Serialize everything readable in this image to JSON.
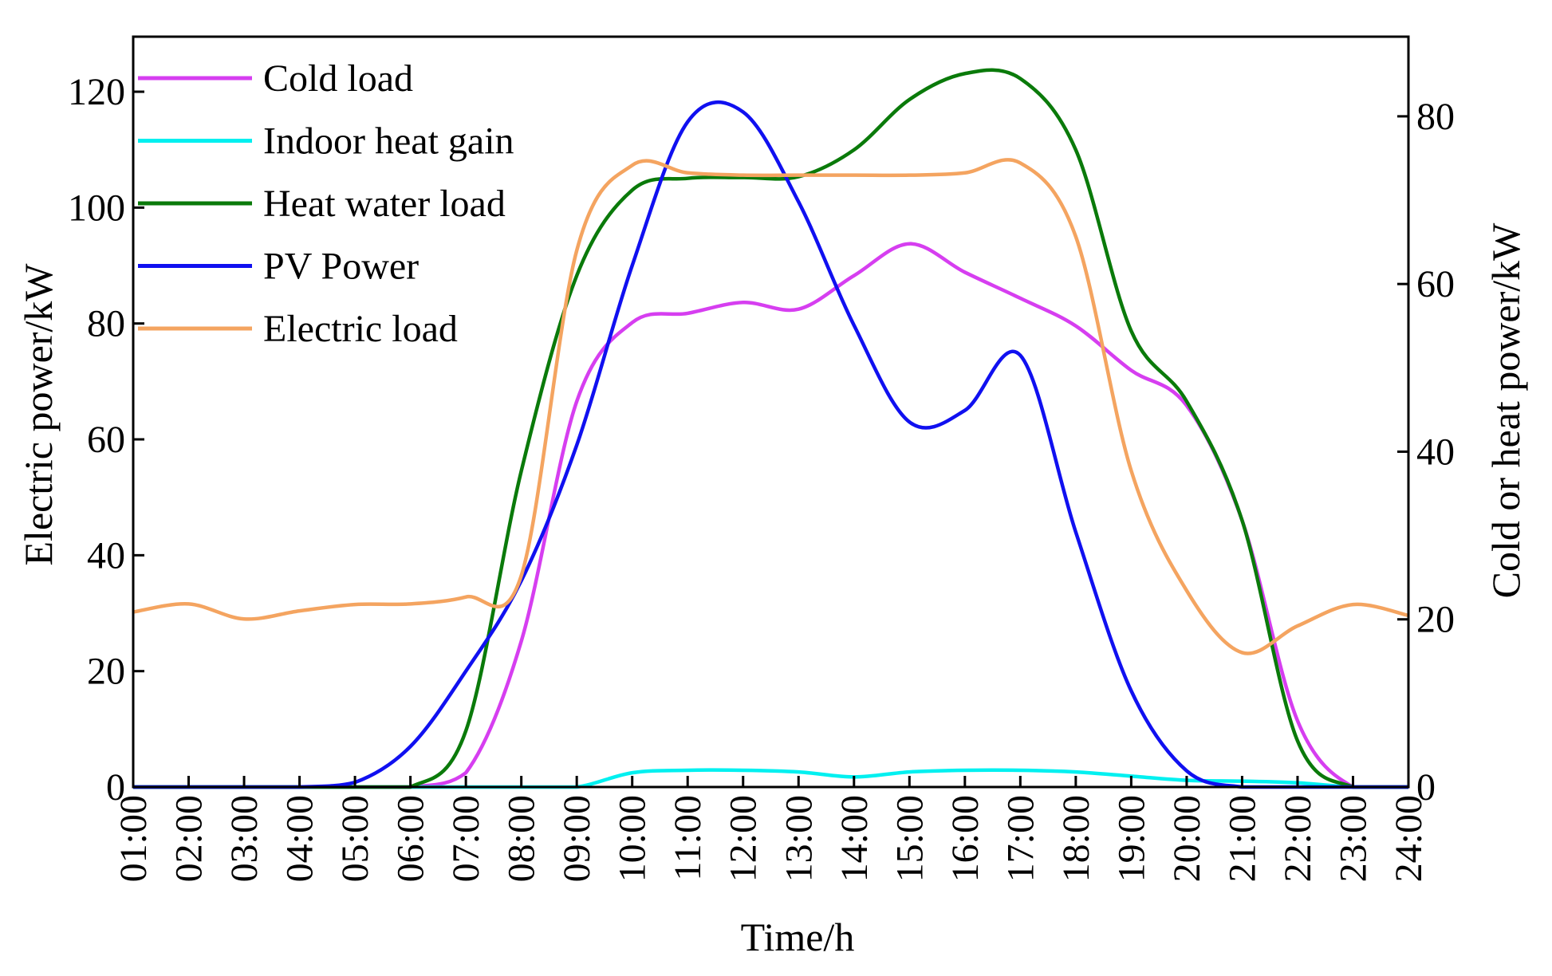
{
  "chart_data": {
    "type": "line",
    "title": "",
    "xlabel": "Time/h",
    "ylabel": "Electric power/kW",
    "y2label": "Cold or heat power/kW",
    "x": [
      "01:00",
      "02:00",
      "03:00",
      "04:00",
      "05:00",
      "06:00",
      "07:00",
      "08:00",
      "09:00",
      "10:00",
      "11:00",
      "12:00",
      "13:00",
      "14:00",
      "15:00",
      "16:00",
      "17:00",
      "18:00",
      "19:00",
      "20:00",
      "21:00",
      "22:00",
      "23:00",
      "24:00"
    ],
    "ylim": [
      0,
      129.5
    ],
    "y2lim": [
      0,
      89.5
    ],
    "yticks": [
      0,
      20,
      40,
      60,
      80,
      100,
      120
    ],
    "y2ticks": [
      0,
      20,
      40,
      60,
      80
    ],
    "legend_position": "top-left",
    "grid": false,
    "series": [
      {
        "name": "Cold load",
        "axis": "right",
        "color": "#d63ef0",
        "values": [
          0,
          0,
          0,
          0,
          0,
          0,
          1.7,
          17.4,
          46,
          55.4,
          56.5,
          57.8,
          57,
          61,
          64.8,
          61.4,
          58.3,
          55,
          49.7,
          45.5,
          31.8,
          7.9,
          0,
          0
        ]
      },
      {
        "name": "Indoor heat gain",
        "axis": "right",
        "color": "#00f0f0",
        "values": [
          0,
          0,
          0,
          0,
          0,
          0,
          0,
          0,
          0,
          1.7,
          2,
          2,
          1.8,
          1.2,
          1.8,
          2,
          2,
          1.8,
          1.3,
          0.8,
          0.7,
          0.5,
          0,
          0
        ]
      },
      {
        "name": "Heat water load",
        "axis": "right",
        "color": "#0a7a0a",
        "values": [
          0,
          0,
          0,
          0,
          0,
          0,
          6.7,
          37.7,
          61,
          71.2,
          72.6,
          72.7,
          72.8,
          76,
          82,
          85.1,
          84.5,
          76,
          54.4,
          46,
          31.8,
          5.5,
          0,
          0
        ]
      },
      {
        "name": "PV Power",
        "axis": "left",
        "color": "#1010f0",
        "values": [
          0,
          0,
          0,
          0,
          0.8,
          7,
          20,
          35.6,
          59,
          90,
          114.8,
          116.5,
          101,
          79.7,
          63,
          65,
          74.5,
          44,
          16.6,
          2.8,
          0,
          0,
          0,
          0
        ]
      },
      {
        "name": "Electric load",
        "axis": "left",
        "color": "#f4a460",
        "values": [
          30.2,
          31.6,
          29,
          30.4,
          31.5,
          31.6,
          32.8,
          36.5,
          92.6,
          107.3,
          106,
          105.6,
          105.6,
          105.6,
          105.6,
          106,
          107.7,
          95,
          54.6,
          33.9,
          23.2,
          27.8,
          31.5,
          29.6
        ]
      }
    ]
  }
}
